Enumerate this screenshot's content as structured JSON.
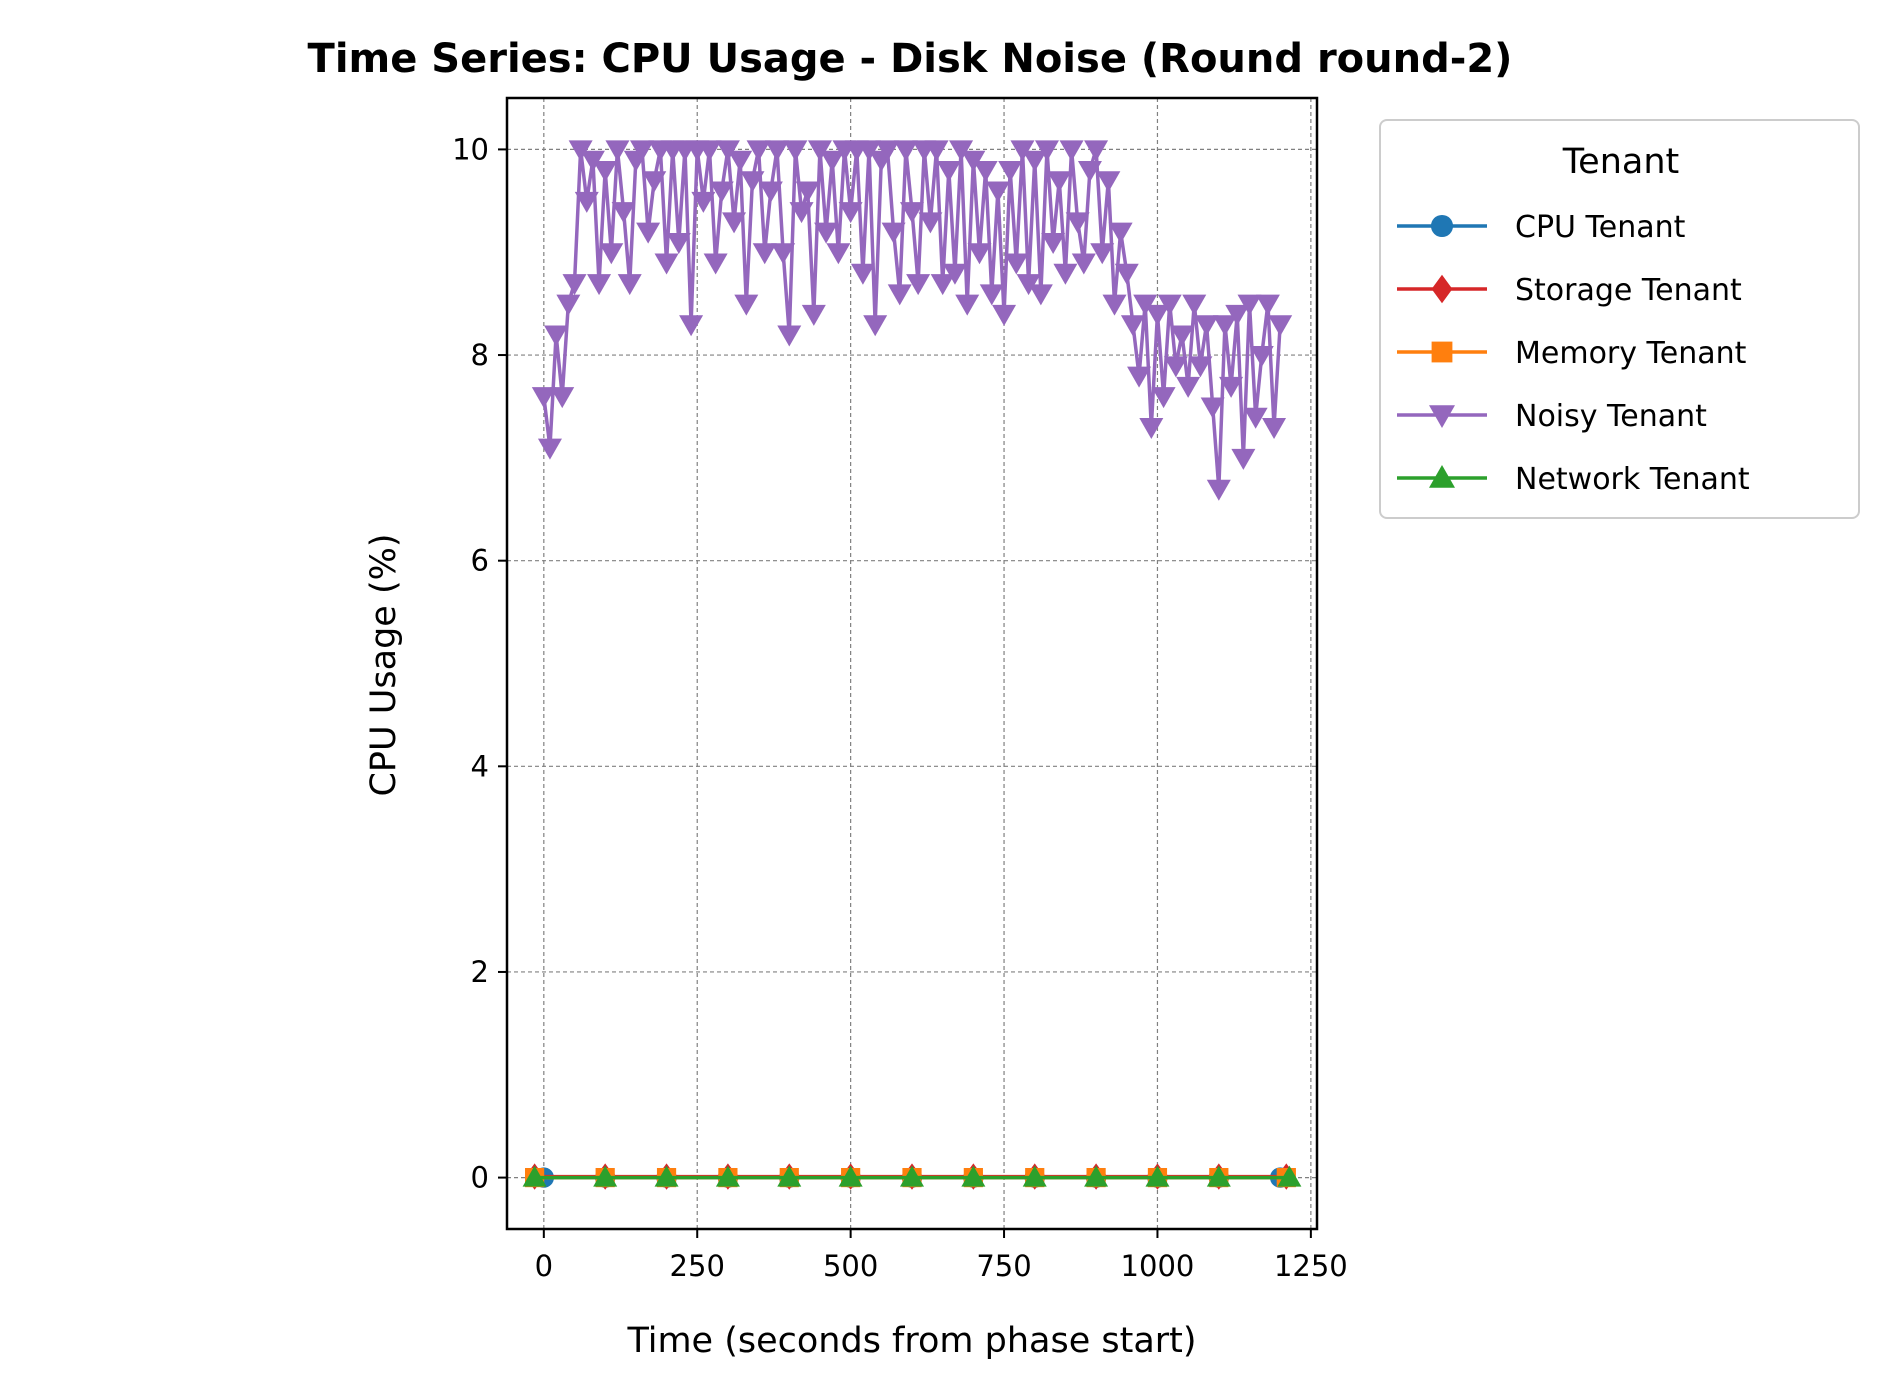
{
  "chart_data": {
    "type": "line",
    "title": "Time Series: CPU Usage - Disk Noise (Round round-2)",
    "xlabel": "Time (seconds from phase start)",
    "ylabel": "CPU Usage (%)",
    "xlim": [
      -60,
      1260
    ],
    "ylim": [
      -0.5,
      10.5
    ],
    "xticks": [
      0,
      250,
      500,
      750,
      1000,
      1250
    ],
    "yticks": [
      0,
      2,
      4,
      6,
      8,
      10
    ],
    "grid": true,
    "legend": {
      "title": "Tenant",
      "placement": "outside-upper-right"
    },
    "series": [
      {
        "name": "CPU Tenant",
        "color": "#1f77b4",
        "marker": "circle",
        "x": [
          0,
          100,
          200,
          300,
          400,
          500,
          600,
          700,
          800,
          900,
          1000,
          1100,
          1200
        ],
        "y": [
          0,
          0,
          0,
          0,
          0,
          0,
          0,
          0,
          0,
          0,
          0,
          0,
          0
        ]
      },
      {
        "name": "Storage Tenant",
        "color": "#d62728",
        "marker": "diamond",
        "x": [
          -15,
          100,
          200,
          300,
          400,
          500,
          600,
          700,
          800,
          900,
          1000,
          1100,
          1210
        ],
        "y": [
          0.01,
          0.01,
          0.01,
          0.01,
          0.01,
          0.01,
          0.01,
          0.01,
          0.01,
          0.01,
          0.01,
          0.01,
          0.01
        ]
      },
      {
        "name": "Memory Tenant",
        "color": "#ff7f0e",
        "marker": "square",
        "x": [
          -15,
          100,
          200,
          300,
          400,
          500,
          600,
          700,
          800,
          900,
          1000,
          1100,
          1210
        ],
        "y": [
          0,
          0,
          0,
          0,
          0,
          0,
          0,
          0,
          0,
          0,
          0,
          0,
          0
        ]
      },
      {
        "name": "Noisy Tenant",
        "color": "#9467bd",
        "marker": "triangle-down",
        "x": [
          0,
          10,
          20,
          30,
          40,
          50,
          60,
          70,
          80,
          90,
          100,
          110,
          120,
          130,
          140,
          150,
          160,
          170,
          180,
          190,
          200,
          210,
          220,
          230,
          240,
          250,
          260,
          270,
          280,
          290,
          300,
          310,
          320,
          330,
          340,
          350,
          360,
          370,
          380,
          390,
          400,
          410,
          420,
          430,
          440,
          450,
          460,
          470,
          480,
          490,
          500,
          510,
          520,
          530,
          540,
          550,
          560,
          570,
          580,
          590,
          600,
          610,
          620,
          630,
          640,
          650,
          660,
          670,
          680,
          690,
          700,
          710,
          720,
          730,
          740,
          750,
          760,
          770,
          780,
          790,
          800,
          810,
          820,
          830,
          840,
          850,
          860,
          870,
          880,
          890,
          900,
          910,
          920,
          930,
          940,
          950,
          960,
          970,
          980,
          990,
          1000,
          1010,
          1020,
          1030,
          1040,
          1050,
          1060,
          1070,
          1080,
          1090,
          1100,
          1110,
          1120,
          1130,
          1140,
          1150,
          1160,
          1170,
          1180,
          1190,
          1200
        ],
        "y": [
          7.6,
          7.1,
          8.2,
          7.6,
          8.5,
          8.7,
          10.0,
          9.5,
          9.9,
          8.7,
          9.8,
          9.0,
          10.0,
          9.4,
          8.7,
          9.9,
          10.0,
          9.2,
          9.7,
          10.0,
          8.9,
          10.0,
          9.1,
          10.0,
          8.3,
          10.0,
          9.5,
          10.0,
          8.9,
          9.6,
          10.0,
          9.3,
          9.9,
          8.5,
          9.7,
          10.0,
          9.0,
          9.6,
          10.0,
          9.0,
          8.2,
          10.0,
          9.4,
          9.6,
          8.4,
          10.0,
          9.2,
          9.9,
          9.0,
          10.0,
          9.4,
          10.0,
          8.8,
          10.0,
          8.3,
          9.9,
          10.0,
          9.2,
          8.6,
          10.0,
          9.4,
          8.7,
          10.0,
          9.3,
          10.0,
          8.7,
          9.8,
          8.8,
          10.0,
          8.5,
          9.9,
          9.0,
          9.8,
          8.6,
          9.6,
          8.4,
          9.8,
          8.9,
          10.0,
          8.7,
          9.9,
          8.6,
          10.0,
          9.1,
          9.7,
          8.8,
          10.0,
          9.3,
          8.9,
          9.8,
          10.0,
          9.0,
          9.7,
          8.5,
          9.2,
          8.8,
          8.3,
          7.8,
          8.5,
          7.3,
          8.4,
          7.6,
          8.5,
          7.9,
          8.2,
          7.7,
          8.5,
          7.9,
          8.3,
          7.5,
          6.7,
          8.3,
          7.7,
          8.4,
          7.0,
          8.5,
          7.4,
          8.0,
          8.5,
          7.3,
          8.3
        ]
      },
      {
        "name": "Network Tenant",
        "color": "#2ca02c",
        "marker": "triangle-up",
        "x": [
          -15,
          100,
          200,
          300,
          400,
          500,
          600,
          700,
          800,
          900,
          1000,
          1100,
          1215
        ],
        "y": [
          0,
          0,
          0,
          0,
          0,
          0,
          0,
          0,
          0,
          0,
          0,
          0,
          0
        ]
      }
    ]
  }
}
